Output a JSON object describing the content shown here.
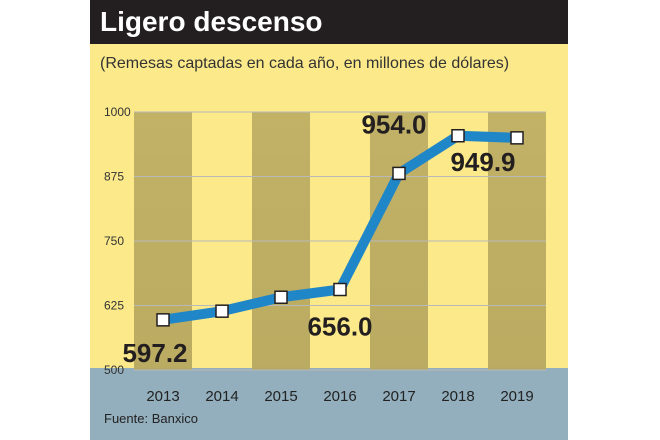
{
  "title": "Ligero descenso",
  "subtitle": "(Remesas captadas en cada año, en millones de dólares)",
  "source": "Fuente: Banxico",
  "colors": {
    "background": "#fbe98a",
    "title_bar": "#231f20",
    "footer_band": "#93aebc",
    "line": "#1f86c8",
    "column_shade": "#b7a860",
    "grid": "#b9b9b9"
  },
  "chart_data": {
    "type": "line",
    "title": "Ligero descenso",
    "subtitle": "(Remesas captadas en cada año, en millones de dólares)",
    "x": [
      "2013",
      "2014",
      "2015",
      "2016",
      "2017",
      "2018",
      "2019"
    ],
    "series": [
      {
        "values": [
          597.2,
          614.0,
          641.0,
          656.0,
          881.0,
          954.0,
          949.9
        ]
      }
    ],
    "data_labels": [
      {
        "index": 0,
        "text": "597.2"
      },
      {
        "index": 3,
        "text": "656.0"
      },
      {
        "index": 5,
        "text": "954.0"
      },
      {
        "index": 6,
        "text": "949.9"
      }
    ],
    "y_ticks": [
      500,
      625,
      750,
      875,
      1000
    ],
    "y_tick_labels": [
      "500",
      "625",
      "750",
      "875",
      "1000"
    ],
    "ylim": [
      500,
      1000
    ],
    "shaded_years": [
      "2013",
      "2015",
      "2017",
      "2019"
    ],
    "grid": true,
    "xlabel": "",
    "ylabel": ""
  }
}
